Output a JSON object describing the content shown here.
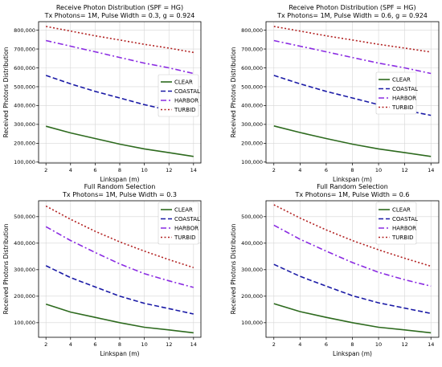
{
  "chart_data": [
    {
      "type": "line",
      "title": "Receive Photon Distribution (SPF = HG)",
      "subtitle": "Tx Photons= 1M, Pulse Width = 0.3, g = 0.924",
      "xlabel": "Linkspan (m)",
      "ylabel": "Received Photons Distribution",
      "x": [
        2,
        4,
        6,
        8,
        10,
        12,
        14
      ],
      "xticks": [
        2,
        4,
        6,
        8,
        10,
        12,
        14
      ],
      "xlim": [
        1.4,
        14.6
      ],
      "ylim": [
        95000,
        845000
      ],
      "yticks": [
        100000,
        200000,
        300000,
        400000,
        500000,
        600000,
        700000,
        800000
      ],
      "ytick_labels": [
        "100,000",
        "200,000",
        "300,000",
        "400,000",
        "500,000",
        "600,000",
        "700,000",
        "800,000"
      ],
      "grid": true,
      "legend": "center-right",
      "series": [
        {
          "name": "CLEAR",
          "color": "#2d6a1e",
          "dash": "solid",
          "values": [
            290000,
            255000,
            225000,
            195000,
            170000,
            150000,
            130000
          ]
        },
        {
          "name": "COASTAL",
          "color": "#1a1aa6",
          "dash": "dashed",
          "values": [
            560000,
            515000,
            475000,
            440000,
            405000,
            375000,
            345000
          ]
        },
        {
          "name": "HARBOR",
          "color": "#8a2be2",
          "dash": "dashdot",
          "values": [
            745000,
            715000,
            685000,
            655000,
            625000,
            600000,
            570000
          ]
        },
        {
          "name": "TURBID",
          "color": "#b22222",
          "dash": "dotted",
          "values": [
            820000,
            795000,
            770000,
            748000,
            725000,
            705000,
            682000
          ]
        }
      ]
    },
    {
      "type": "line",
      "title": "Receive Photon Distribution (SPF = HG)",
      "subtitle": "Tx Photons= 1M, Pulse Width = 0.6, g = 0.924",
      "xlabel": "Linkspan (m)",
      "ylabel": "Received Photons Distribution",
      "x": [
        2,
        4,
        6,
        8,
        10,
        12,
        14
      ],
      "xticks": [
        2,
        4,
        6,
        8,
        10,
        12,
        14
      ],
      "xlim": [
        1.4,
        14.6
      ],
      "ylim": [
        95000,
        845000
      ],
      "yticks": [
        100000,
        200000,
        300000,
        400000,
        500000,
        600000,
        700000,
        800000
      ],
      "ytick_labels": [
        "100,000",
        "200,000",
        "300,000",
        "400,000",
        "500,000",
        "600,000",
        "700,000",
        "800,000"
      ],
      "grid": true,
      "legend": "center-right",
      "series": [
        {
          "name": "CLEAR",
          "color": "#2d6a1e",
          "dash": "solid",
          "values": [
            292000,
            257000,
            225000,
            195000,
            170000,
            150000,
            130000
          ]
        },
        {
          "name": "COASTAL",
          "color": "#1a1aa6",
          "dash": "dashed",
          "values": [
            560000,
            515000,
            475000,
            440000,
            405000,
            375000,
            348000
          ]
        },
        {
          "name": "HARBOR",
          "color": "#8a2be2",
          "dash": "dashdot",
          "values": [
            745000,
            715000,
            685000,
            655000,
            625000,
            600000,
            570000
          ]
        },
        {
          "name": "TURBID",
          "color": "#b22222",
          "dash": "dotted",
          "values": [
            820000,
            795000,
            770000,
            748000,
            725000,
            705000,
            684000
          ]
        }
      ]
    },
    {
      "type": "line",
      "title": "Full Random Selection",
      "subtitle": "Tx Photons= 1M, Pulse Width = 0.3",
      "xlabel": "Linkspan (m)",
      "ylabel": "Received Photons Distribution",
      "x": [
        2,
        4,
        6,
        8,
        10,
        12,
        14
      ],
      "xticks": [
        2,
        4,
        6,
        8,
        10,
        12,
        14
      ],
      "xlim": [
        1.4,
        14.6
      ],
      "ylim": [
        45000,
        560000
      ],
      "yticks": [
        100000,
        200000,
        300000,
        400000,
        500000
      ],
      "ytick_labels": [
        "100,000",
        "200,000",
        "300,000",
        "400,000",
        "500,000"
      ],
      "grid": true,
      "legend": "top-right",
      "series": [
        {
          "name": "CLEAR",
          "color": "#2d6a1e",
          "dash": "solid",
          "values": [
            170000,
            140000,
            120000,
            100000,
            83000,
            73000,
            62000
          ]
        },
        {
          "name": "COASTAL",
          "color": "#1a1aa6",
          "dash": "dashed",
          "values": [
            315000,
            270000,
            235000,
            200000,
            173000,
            153000,
            133000
          ]
        },
        {
          "name": "HARBOR",
          "color": "#8a2be2",
          "dash": "dashdot",
          "values": [
            462000,
            410000,
            365000,
            322000,
            285000,
            258000,
            233000
          ]
        },
        {
          "name": "TURBID",
          "color": "#b22222",
          "dash": "dotted",
          "values": [
            540000,
            490000,
            445000,
            405000,
            370000,
            338000,
            308000
          ]
        }
      ]
    },
    {
      "type": "line",
      "title": "Full Random Selection",
      "subtitle": "Tx Photons= 1M, Pulse Width = 0.6",
      "xlabel": "Linkspan (m)",
      "ylabel": "Received Photons Distribution",
      "x": [
        2,
        4,
        6,
        8,
        10,
        12,
        14
      ],
      "xticks": [
        2,
        4,
        6,
        8,
        10,
        12,
        14
      ],
      "xlim": [
        1.4,
        14.6
      ],
      "ylim": [
        45000,
        560000
      ],
      "yticks": [
        100000,
        200000,
        300000,
        400000,
        500000
      ],
      "ytick_labels": [
        "100,000",
        "200,000",
        "300,000",
        "400,000",
        "500,000"
      ],
      "grid": true,
      "legend": "top-right",
      "series": [
        {
          "name": "CLEAR",
          "color": "#2d6a1e",
          "dash": "solid",
          "values": [
            172000,
            142000,
            120000,
            100000,
            83000,
            73000,
            62000
          ]
        },
        {
          "name": "COASTAL",
          "color": "#1a1aa6",
          "dash": "dashed",
          "values": [
            320000,
            275000,
            238000,
            202000,
            175000,
            155000,
            135000
          ]
        },
        {
          "name": "HARBOR",
          "color": "#8a2be2",
          "dash": "dashdot",
          "values": [
            468000,
            415000,
            370000,
            327000,
            290000,
            262000,
            238000
          ]
        },
        {
          "name": "TURBID",
          "color": "#b22222",
          "dash": "dotted",
          "values": [
            545000,
            495000,
            450000,
            410000,
            375000,
            343000,
            313000
          ]
        }
      ]
    }
  ]
}
